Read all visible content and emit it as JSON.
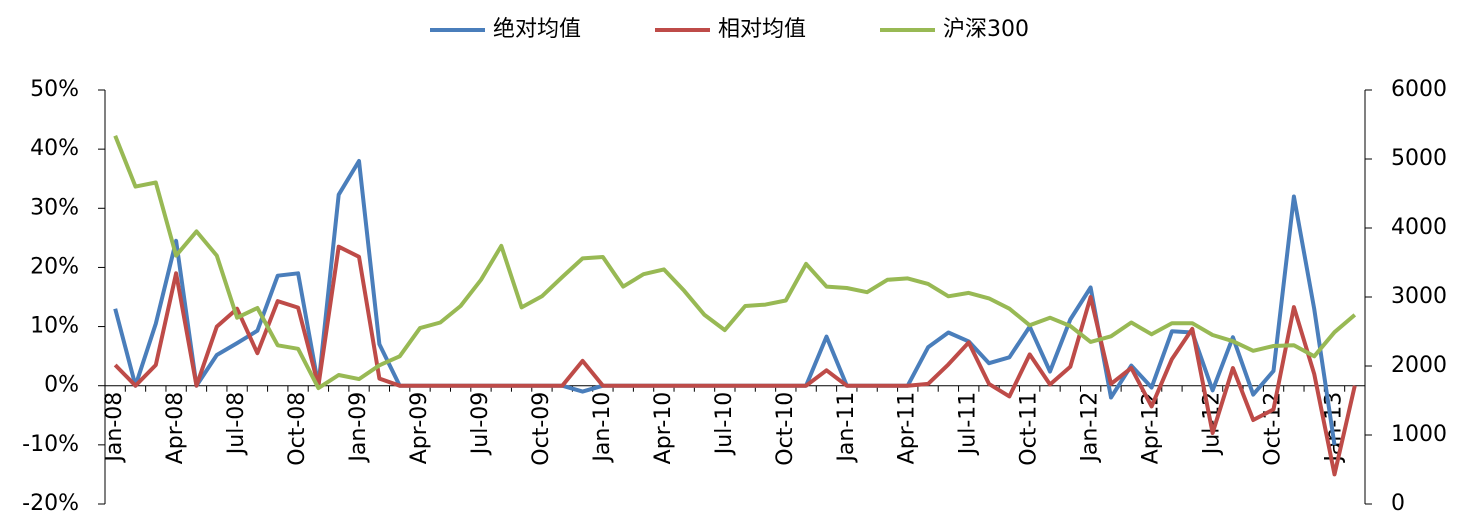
{
  "chart_data": {
    "type": "line",
    "categories": [
      "Jan-08",
      null,
      null,
      "Apr-08",
      null,
      null,
      "Jul-08",
      null,
      null,
      "Oct-08",
      null,
      null,
      "Jan-09",
      null,
      null,
      "Apr-09",
      null,
      null,
      "Jul-09",
      null,
      null,
      "Oct-09",
      null,
      null,
      "Jan-10",
      null,
      null,
      "Apr-10",
      null,
      null,
      "Jul-10",
      null,
      null,
      "Oct-10",
      null,
      null,
      "Jan-11",
      null,
      null,
      "Apr-11",
      null,
      null,
      "Jul-11",
      null,
      null,
      "Oct-11",
      null,
      null,
      "Jan-12",
      null,
      null,
      "Apr-12",
      null,
      null,
      "Jul-12",
      null,
      null,
      "Oct-12",
      null,
      null,
      "Jan-13",
      null
    ],
    "series": [
      {
        "name": "绝对均值",
        "color": "#4a7ebb",
        "values": [
          13,
          0,
          10.5,
          24.5,
          0,
          5.2,
          7.2,
          9.3,
          18.6,
          19,
          0,
          32.3,
          38,
          7,
          0,
          0,
          0,
          0,
          0,
          0,
          0,
          0,
          0,
          -1,
          0,
          0,
          0,
          0,
          0,
          0,
          0,
          0,
          0,
          0,
          0,
          8.3,
          0,
          0,
          0,
          0,
          6.5,
          9,
          7.5,
          3.8,
          4.8,
          10,
          2.4,
          11.2,
          16.6,
          -2,
          3.4,
          -0.3,
          9.2,
          9,
          -0.8,
          8.2,
          -1.5,
          2.5,
          32,
          13,
          -10,
          null
        ]
      },
      {
        "name": "相对均值",
        "color": "#be4b48",
        "values": [
          3.5,
          0,
          3.5,
          19,
          0,
          10,
          13,
          5.5,
          14.3,
          13.2,
          0,
          23.5,
          21.8,
          1.2,
          0,
          0,
          0,
          0,
          0,
          0,
          0,
          0,
          0,
          4.2,
          0,
          0,
          0,
          0,
          0,
          0,
          0,
          0,
          0,
          0,
          0,
          2.6,
          0,
          0,
          0,
          0,
          0.3,
          3.6,
          7.3,
          0.3,
          -1.8,
          5.3,
          0.2,
          3.2,
          15,
          0.3,
          3,
          -3.5,
          4.5,
          9.6,
          -8,
          3,
          -5.8,
          -4,
          13.3,
          2,
          -15,
          0
        ]
      },
      {
        "name": "沪深300",
        "color": "#98b954",
        "axis": "y2",
        "values": [
          5338,
          4600,
          4660,
          3600,
          3950,
          3600,
          2700,
          2840,
          2300,
          2250,
          1680,
          1870,
          1810,
          2010,
          2140,
          2550,
          2630,
          2870,
          3250,
          3740,
          2850,
          3010,
          3290,
          3560,
          3580,
          3150,
          3330,
          3400,
          3090,
          2740,
          2520,
          2870,
          2890,
          2950,
          3480,
          3150,
          3130,
          3070,
          3250,
          3270,
          3190,
          3010,
          3060,
          2980,
          2830,
          2590,
          2700,
          2580,
          2350,
          2430,
          2630,
          2460,
          2620,
          2620,
          2450,
          2360,
          2220,
          2290,
          2300,
          2140,
          2490,
          2740
        ]
      }
    ],
    "ylim": [
      -20,
      50
    ],
    "yticks": [
      {
        "value": -20,
        "label": "-20%"
      },
      {
        "value": -10,
        "label": "-10%"
      },
      {
        "value": 0,
        "label": "0%"
      },
      {
        "value": 10,
        "label": "10%"
      },
      {
        "value": 20,
        "label": "20%"
      },
      {
        "value": 30,
        "label": "30%"
      },
      {
        "value": 40,
        "label": "40%"
      },
      {
        "value": 50,
        "label": "50%"
      }
    ],
    "y2lim": [
      0,
      6000
    ],
    "y2ticks": [
      0,
      1000,
      2000,
      3000,
      4000,
      5000,
      6000
    ],
    "legend": "top"
  }
}
